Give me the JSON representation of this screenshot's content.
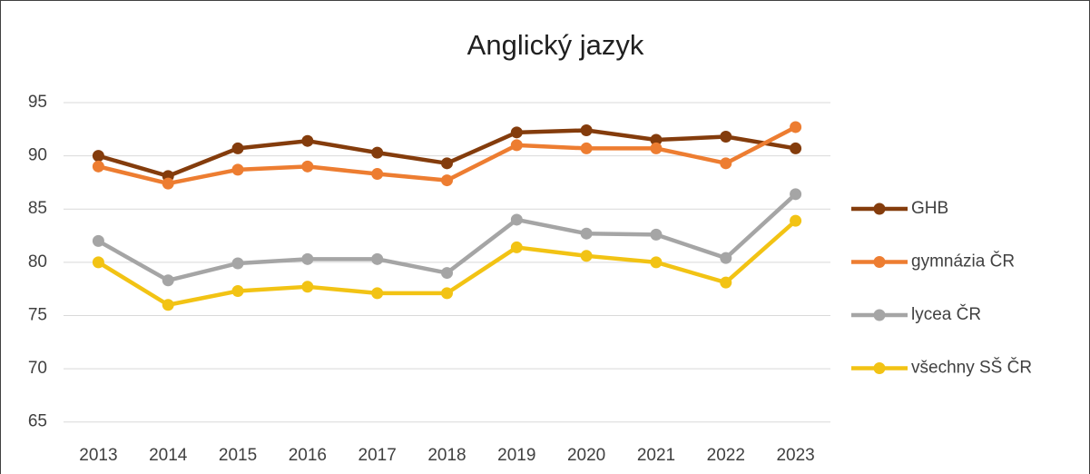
{
  "chart_data": {
    "type": "line",
    "title": "Anglický jazyk",
    "categories": [
      "2013",
      "2014",
      "2015",
      "2016",
      "2017",
      "2018",
      "2019",
      "2020",
      "2021",
      "2022",
      "2023"
    ],
    "series": [
      {
        "name": "GHB",
        "color": "#843c0c",
        "values": [
          90,
          88.1,
          90.7,
          91.4,
          90.3,
          89.3,
          92.2,
          92.4,
          91.5,
          91.8,
          90.7
        ]
      },
      {
        "name": "gymnázia ČR",
        "color": "#ed7d31",
        "values": [
          89,
          87.4,
          88.7,
          89,
          88.3,
          87.7,
          91,
          90.7,
          90.7,
          89.3,
          92.7
        ]
      },
      {
        "name": "lycea ČR",
        "color": "#a5a5a5",
        "values": [
          82,
          78.3,
          79.9,
          80.3,
          80.3,
          79,
          84,
          82.7,
          82.6,
          80.4,
          86.4
        ]
      },
      {
        "name": "všechny SŠ ČR",
        "color": "#f2c314",
        "values": [
          80,
          76,
          77.3,
          77.7,
          77.1,
          77.1,
          81.4,
          80.6,
          80,
          78.1,
          83.9
        ]
      }
    ],
    "ylim": [
      62.5,
      95
    ],
    "yticks": [
      65,
      70,
      75,
      80,
      85,
      90,
      95
    ],
    "grid": true,
    "legend": "right"
  }
}
